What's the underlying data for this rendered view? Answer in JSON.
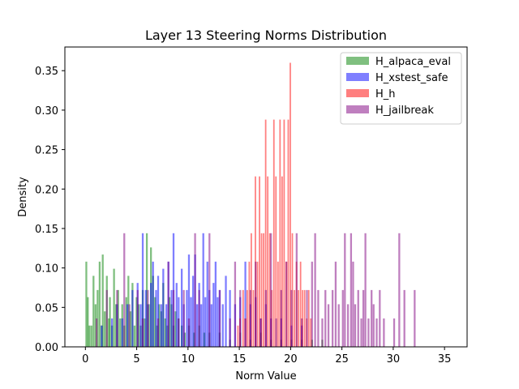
{
  "chart_data": {
    "type": "histogram",
    "title": "Layer 13 Steering Norms Distribution",
    "xlabel": "Norm Value",
    "ylabel": "Density",
    "xlim": [
      -2,
      37.2
    ],
    "ylim": [
      0,
      0.38
    ],
    "xticks": [
      0,
      5,
      10,
      15,
      20,
      25,
      30,
      35
    ],
    "yticks": [
      0.0,
      0.05,
      0.1,
      0.15,
      0.2,
      0.25,
      0.3,
      0.35
    ],
    "ytick_labels": [
      "0.00",
      "0.05",
      "0.10",
      "0.15",
      "0.20",
      "0.25",
      "0.30",
      "0.35"
    ],
    "legend_position": "upper-right",
    "grid": false,
    "series": [
      {
        "name": "H_alpaca_eval",
        "color": "#008000",
        "alpha": 0.5,
        "bin_width": 0.18,
        "bars": [
          [
            0.0,
            0.108
          ],
          [
            0.15,
            0.063
          ],
          [
            0.3,
            0.027
          ],
          [
            0.5,
            0.027
          ],
          [
            0.7,
            0.09
          ],
          [
            0.9,
            0.054
          ],
          [
            1.1,
            0.072
          ],
          [
            1.3,
            0.108
          ],
          [
            1.5,
            0.027
          ],
          [
            1.6,
            0.117
          ],
          [
            1.8,
            0.045
          ],
          [
            2.0,
            0.09
          ],
          [
            2.2,
            0.036
          ],
          [
            2.3,
            0.063
          ],
          [
            2.5,
            0.027
          ],
          [
            2.7,
            0.099
          ],
          [
            2.9,
            0.054
          ],
          [
            3.1,
            0.072
          ],
          [
            3.3,
            0.036
          ],
          [
            3.5,
            0.054
          ],
          [
            3.7,
            0.027
          ],
          [
            3.9,
            0.063
          ],
          [
            4.1,
            0.09
          ],
          [
            4.3,
            0.045
          ],
          [
            4.5,
            0.081
          ],
          [
            4.7,
            0.027
          ],
          [
            4.9,
            0.063
          ],
          [
            5.1,
            0.054
          ],
          [
            5.3,
            0.027
          ],
          [
            5.5,
            0.072
          ],
          [
            5.7,
            0.036
          ],
          [
            5.9,
            0.144
          ],
          [
            6.1,
            0.054
          ],
          [
            6.3,
            0.126
          ],
          [
            6.5,
            0.09
          ],
          [
            6.7,
            0.063
          ],
          [
            6.9,
            0.027
          ],
          [
            7.1,
            0.054
          ],
          [
            7.3,
            0.045
          ],
          [
            7.5,
            0.081
          ],
          [
            7.7,
            0.036
          ],
          [
            7.9,
            0.027
          ],
          [
            8.1,
            0.063
          ],
          [
            8.3,
            0.054
          ],
          [
            8.5,
            0.027
          ],
          [
            8.7,
            0.045
          ],
          [
            9.0,
            0.036
          ],
          [
            9.3,
            0.027
          ],
          [
            9.6,
            0.018
          ],
          [
            10.0,
            0.027
          ],
          [
            10.5,
            0.018
          ],
          [
            11.0,
            0.027
          ],
          [
            11.5,
            0.018
          ],
          [
            12.0,
            0.018
          ],
          [
            13.0,
            0.018
          ],
          [
            14.0,
            0.009
          ],
          [
            15.0,
            0.018
          ],
          [
            16.0,
            0.009
          ],
          [
            17.0,
            0.018
          ],
          [
            18.0,
            0.009
          ],
          [
            19.0,
            0.009
          ],
          [
            20.0,
            0.009
          ],
          [
            21.0,
            0.009
          ],
          [
            22.0,
            0.009
          ],
          [
            23.0,
            0.009
          ]
        ]
      },
      {
        "name": "H_xstest_safe",
        "color": "#0000ff",
        "alpha": 0.5,
        "bin_width": 0.18,
        "bars": [
          [
            1.5,
            0.027
          ],
          [
            2.5,
            0.036
          ],
          [
            3.0,
            0.054
          ],
          [
            3.5,
            0.036
          ],
          [
            4.0,
            0.054
          ],
          [
            4.5,
            0.072
          ],
          [
            5.0,
            0.081
          ],
          [
            5.3,
            0.054
          ],
          [
            5.5,
            0.144
          ],
          [
            5.8,
            0.072
          ],
          [
            6.0,
            0.054
          ],
          [
            6.3,
            0.081
          ],
          [
            6.5,
            0.108
          ],
          [
            6.8,
            0.072
          ],
          [
            7.0,
            0.09
          ],
          [
            7.3,
            0.054
          ],
          [
            7.5,
            0.099
          ],
          [
            7.8,
            0.054
          ],
          [
            8.0,
            0.108
          ],
          [
            8.3,
            0.072
          ],
          [
            8.5,
            0.144
          ],
          [
            8.8,
            0.081
          ],
          [
            9.0,
            0.063
          ],
          [
            9.3,
            0.099
          ],
          [
            9.5,
            0.054
          ],
          [
            9.8,
            0.072
          ],
          [
            10.0,
            0.117
          ],
          [
            10.2,
            0.063
          ],
          [
            10.4,
            0.09
          ],
          [
            10.6,
            0.117
          ],
          [
            10.8,
            0.054
          ],
          [
            11.0,
            0.081
          ],
          [
            11.2,
            0.054
          ],
          [
            11.4,
            0.144
          ],
          [
            11.6,
            0.063
          ],
          [
            11.8,
            0.108
          ],
          [
            12.0,
            0.072
          ],
          [
            12.2,
            0.054
          ],
          [
            12.4,
            0.081
          ],
          [
            12.6,
            0.108
          ],
          [
            12.8,
            0.063
          ],
          [
            13.0,
            0.072
          ],
          [
            13.3,
            0.054
          ],
          [
            13.6,
            0.09
          ],
          [
            14.0,
            0.072
          ],
          [
            14.5,
            0.054
          ],
          [
            15.0,
            0.063
          ],
          [
            15.5,
            0.108
          ],
          [
            16.0,
            0.054
          ],
          [
            16.5,
            0.063
          ],
          [
            17.0,
            0.036
          ],
          [
            17.5,
            0.054
          ],
          [
            18.0,
            0.036
          ],
          [
            19.0,
            0.036
          ],
          [
            20.0,
            0.027
          ],
          [
            21.0,
            0.027
          ]
        ]
      },
      {
        "name": "H_h",
        "color": "#ff0000",
        "alpha": 0.5,
        "bin_width": 0.14,
        "bars": [
          [
            14.8,
            0.027
          ],
          [
            15.0,
            0.036
          ],
          [
            15.3,
            0.072
          ],
          [
            15.5,
            0.036
          ],
          [
            15.7,
            0.072
          ],
          [
            15.9,
            0.108
          ],
          [
            16.1,
            0.144
          ],
          [
            16.3,
            0.072
          ],
          [
            16.5,
            0.216
          ],
          [
            16.7,
            0.108
          ],
          [
            16.9,
            0.216
          ],
          [
            17.1,
            0.144
          ],
          [
            17.3,
            0.144
          ],
          [
            17.5,
            0.288
          ],
          [
            17.7,
            0.216
          ],
          [
            17.9,
            0.144
          ],
          [
            18.1,
            0.072
          ],
          [
            18.3,
            0.288
          ],
          [
            18.5,
            0.216
          ],
          [
            18.7,
            0.108
          ],
          [
            18.9,
            0.288
          ],
          [
            19.1,
            0.216
          ],
          [
            19.3,
            0.288
          ],
          [
            19.5,
            0.108
          ],
          [
            19.7,
            0.288
          ],
          [
            19.9,
            0.36
          ],
          [
            20.1,
            0.144
          ],
          [
            20.3,
            0.072
          ],
          [
            20.5,
            0.108
          ],
          [
            20.7,
            0.072
          ],
          [
            20.9,
            0.108
          ],
          [
            21.1,
            0.072
          ],
          [
            21.3,
            0.072
          ],
          [
            21.5,
            0.036
          ],
          [
            21.7,
            0.072
          ],
          [
            21.9,
            0.036
          ]
        ]
      },
      {
        "name": "H_jailbreak",
        "color": "#800080",
        "alpha": 0.5,
        "bin_width": 0.18,
        "bars": [
          [
            1.0,
            0.036
          ],
          [
            2.0,
            0.072
          ],
          [
            3.0,
            0.072
          ],
          [
            3.7,
            0.144
          ],
          [
            4.2,
            0.054
          ],
          [
            5.0,
            0.072
          ],
          [
            5.5,
            0.036
          ],
          [
            6.0,
            0.072
          ],
          [
            7.0,
            0.036
          ],
          [
            8.0,
            0.108
          ],
          [
            8.5,
            0.072
          ],
          [
            9.0,
            0.036
          ],
          [
            9.5,
            0.072
          ],
          [
            10.0,
            0.036
          ],
          [
            10.6,
            0.144
          ],
          [
            11.0,
            0.072
          ],
          [
            12.0,
            0.144
          ],
          [
            13.0,
            0.072
          ],
          [
            14.0,
            0.036
          ],
          [
            14.5,
            0.108
          ],
          [
            15.0,
            0.072
          ],
          [
            15.5,
            0.036
          ],
          [
            16.0,
            0.072
          ],
          [
            16.5,
            0.108
          ],
          [
            17.0,
            0.036
          ],
          [
            17.5,
            0.072
          ],
          [
            18.0,
            0.144
          ],
          [
            18.5,
            0.036
          ],
          [
            19.0,
            0.072
          ],
          [
            19.5,
            0.108
          ],
          [
            20.0,
            0.072
          ],
          [
            20.5,
            0.144
          ],
          [
            21.0,
            0.036
          ],
          [
            21.5,
            0.072
          ],
          [
            22.0,
            0.108
          ],
          [
            22.3,
            0.144
          ],
          [
            22.6,
            0.072
          ],
          [
            23.0,
            0.036
          ],
          [
            23.3,
            0.072
          ],
          [
            23.6,
            0.054
          ],
          [
            24.0,
            0.072
          ],
          [
            24.3,
            0.108
          ],
          [
            24.6,
            0.054
          ],
          [
            25.0,
            0.072
          ],
          [
            25.2,
            0.144
          ],
          [
            25.5,
            0.054
          ],
          [
            25.8,
            0.144
          ],
          [
            26.0,
            0.108
          ],
          [
            26.2,
            0.054
          ],
          [
            26.5,
            0.072
          ],
          [
            26.8,
            0.036
          ],
          [
            27.0,
            0.072
          ],
          [
            27.2,
            0.144
          ],
          [
            27.5,
            0.036
          ],
          [
            27.8,
            0.072
          ],
          [
            28.0,
            0.054
          ],
          [
            28.3,
            0.036
          ],
          [
            28.6,
            0.072
          ],
          [
            29.0,
            0.036
          ],
          [
            30.0,
            0.036
          ],
          [
            30.5,
            0.144
          ],
          [
            31.0,
            0.072
          ],
          [
            32.0,
            0.072
          ]
        ]
      }
    ]
  }
}
